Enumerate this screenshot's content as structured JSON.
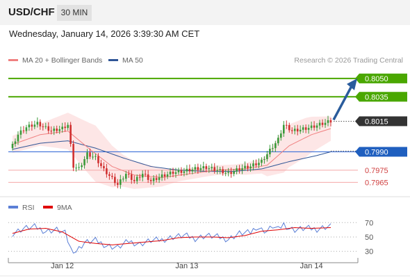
{
  "header": {
    "symbol": "USD/CHF",
    "timeframe": "30 MIN"
  },
  "datetime": "Wednesday, January 14, 2026 3:39:30 AM CET",
  "colors": {
    "ma20": "#f08080",
    "ma50": "#2f5596",
    "band_fill": "#fde3e3",
    "level_green": "#4aa700",
    "level_red": "#f4a7a7",
    "current_line": "#3b6fd8",
    "candle_up": "#3a9a3a",
    "candle_down": "#d03030",
    "arrow": "#2a5c9c",
    "rsi": "#5b7fd6",
    "rsi_ma": "#e00000",
    "support_label": "#1f5fbf",
    "last_label": "#333333"
  },
  "chart_data": [
    {
      "type": "candlestick",
      "legend": [
        {
          "label": "MA 20 + Bollinger Bands",
          "color": "#f08080"
        },
        {
          "label": "MA 50",
          "color": "#2f5596"
        }
      ],
      "attribution": "Research © 2026 Trading Central",
      "x_ticks": [
        "Jan 12",
        "Jan 13",
        "Jan 14"
      ],
      "y_range": [
        0.7955,
        0.8063
      ],
      "levels": [
        {
          "label": "0.8050",
          "value": 0.805,
          "kind": "resistance"
        },
        {
          "label": "0.8035",
          "value": 0.8035,
          "kind": "resistance"
        },
        {
          "label": "0.8015",
          "value": 0.8015,
          "kind": "last"
        },
        {
          "label": "0.7990",
          "value": 0.799,
          "kind": "pivot"
        },
        {
          "label": "0.7975",
          "value": 0.7975,
          "kind": "support"
        },
        {
          "label": "0.7965",
          "value": 0.7965,
          "kind": "support"
        }
      ],
      "projection": {
        "from": 0.8015,
        "to": 0.805
      },
      "ohlc_close_waypoints": [
        [
          0,
          0.7995
        ],
        [
          2,
          0.8004
        ],
        [
          5,
          0.801
        ],
        [
          9,
          0.8013
        ],
        [
          14,
          0.8007
        ],
        [
          18,
          0.8009
        ],
        [
          20,
          0.8012
        ],
        [
          21,
          0.7995
        ],
        [
          22,
          0.7978
        ],
        [
          24,
          0.7976
        ],
        [
          27,
          0.7988
        ],
        [
          30,
          0.7985
        ],
        [
          33,
          0.7975
        ],
        [
          36,
          0.7968
        ],
        [
          38,
          0.7963
        ],
        [
          41,
          0.7972
        ],
        [
          44,
          0.7966
        ],
        [
          47,
          0.7972
        ],
        [
          50,
          0.7966
        ],
        [
          54,
          0.797
        ],
        [
          58,
          0.7973
        ],
        [
          62,
          0.7974
        ],
        [
          66,
          0.7976
        ],
        [
          70,
          0.7977
        ],
        [
          74,
          0.7975
        ],
        [
          78,
          0.7972
        ],
        [
          82,
          0.7976
        ],
        [
          86,
          0.7978
        ],
        [
          90,
          0.7982
        ],
        [
          93,
          0.7991
        ],
        [
          96,
          0.8
        ],
        [
          98,
          0.8012
        ],
        [
          101,
          0.8007
        ],
        [
          104,
          0.8008
        ],
        [
          108,
          0.801
        ],
        [
          112,
          0.8013
        ],
        [
          115,
          0.8015
        ]
      ],
      "ma20_waypoints": [
        [
          0,
          0.7996
        ],
        [
          10,
          0.8004
        ],
        [
          20,
          0.8007
        ],
        [
          28,
          0.7992
        ],
        [
          36,
          0.7978
        ],
        [
          44,
          0.7971
        ],
        [
          54,
          0.7969
        ],
        [
          64,
          0.7972
        ],
        [
          74,
          0.7975
        ],
        [
          84,
          0.7976
        ],
        [
          92,
          0.7979
        ],
        [
          100,
          0.7995
        ],
        [
          108,
          0.8004
        ],
        [
          115,
          0.8009
        ]
      ],
      "ma50_waypoints": [
        [
          0,
          0.7992
        ],
        [
          10,
          0.7997
        ],
        [
          20,
          0.7999
        ],
        [
          30,
          0.7993
        ],
        [
          40,
          0.7985
        ],
        [
          50,
          0.7978
        ],
        [
          60,
          0.7975
        ],
        [
          70,
          0.7974
        ],
        [
          80,
          0.7974
        ],
        [
          90,
          0.7976
        ],
        [
          100,
          0.7982
        ],
        [
          110,
          0.7987
        ],
        [
          115,
          0.799
        ]
      ],
      "bollinger_width_waypoints": [
        [
          0,
          0.0007
        ],
        [
          10,
          0.0009
        ],
        [
          20,
          0.0015
        ],
        [
          30,
          0.0023
        ],
        [
          40,
          0.0013
        ],
        [
          50,
          0.0009
        ],
        [
          60,
          0.0005
        ],
        [
          70,
          0.0004
        ],
        [
          80,
          0.0004
        ],
        [
          90,
          0.0006
        ],
        [
          98,
          0.0018
        ],
        [
          106,
          0.0016
        ],
        [
          115,
          0.001
        ]
      ]
    },
    {
      "type": "line",
      "legend": [
        {
          "label": "RSI",
          "color": "#5b7fd6"
        },
        {
          "label": "9MA",
          "color": "#e00000"
        }
      ],
      "y_ticks": [
        70,
        50,
        30
      ],
      "y_range": [
        20,
        78
      ],
      "rsi_waypoints": [
        [
          0,
          55
        ],
        [
          4,
          62
        ],
        [
          8,
          64
        ],
        [
          12,
          58
        ],
        [
          16,
          60
        ],
        [
          19,
          55
        ],
        [
          21,
          34
        ],
        [
          23,
          30
        ],
        [
          26,
          42
        ],
        [
          30,
          45
        ],
        [
          34,
          38
        ],
        [
          38,
          35
        ],
        [
          42,
          44
        ],
        [
          46,
          40
        ],
        [
          50,
          45
        ],
        [
          54,
          46
        ],
        [
          58,
          50
        ],
        [
          62,
          52
        ],
        [
          66,
          48
        ],
        [
          70,
          52
        ],
        [
          74,
          50
        ],
        [
          78,
          47
        ],
        [
          82,
          55
        ],
        [
          86,
          56
        ],
        [
          88,
          64
        ],
        [
          90,
          60
        ],
        [
          92,
          58
        ],
        [
          94,
          65
        ],
        [
          96,
          60
        ],
        [
          98,
          68
        ],
        [
          100,
          62
        ],
        [
          102,
          60
        ],
        [
          106,
          62
        ],
        [
          110,
          61
        ],
        [
          113,
          64
        ],
        [
          115,
          65
        ]
      ],
      "ma9_waypoints": [
        [
          0,
          55
        ],
        [
          6,
          61
        ],
        [
          12,
          62
        ],
        [
          18,
          57
        ],
        [
          24,
          44
        ],
        [
          30,
          41
        ],
        [
          36,
          39
        ],
        [
          42,
          41
        ],
        [
          48,
          43
        ],
        [
          54,
          45
        ],
        [
          60,
          49
        ],
        [
          66,
          50
        ],
        [
          72,
          50
        ],
        [
          78,
          49
        ],
        [
          84,
          52
        ],
        [
          90,
          58
        ],
        [
          96,
          60
        ],
        [
          102,
          63
        ],
        [
          108,
          62
        ],
        [
          115,
          63
        ]
      ]
    }
  ]
}
